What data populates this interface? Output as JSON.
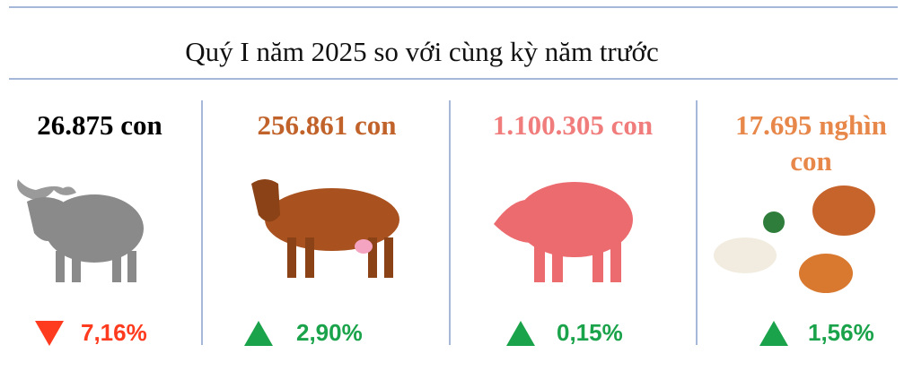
{
  "title": "Quý  I năm  2025  so với cùng kỳ năm trước",
  "items": [
    {
      "count": "26.875 con",
      "count_color": "#000000",
      "change": "7,16%",
      "direction": "down",
      "change_color": "#ff3b1f"
    },
    {
      "count": "256.861 con",
      "count_color": "#c0622a",
      "change": "2,90%",
      "direction": "up",
      "change_color": "#1aa34a"
    },
    {
      "count": "1.100.305 con",
      "count_color": "#f07c7c",
      "change": "0,15%",
      "direction": "up",
      "change_color": "#1aa34a"
    },
    {
      "count": "17.695 nghìn con",
      "count_color": "#e8874a",
      "change": "1,56%",
      "direction": "up",
      "change_color": "#1aa34a"
    }
  ]
}
